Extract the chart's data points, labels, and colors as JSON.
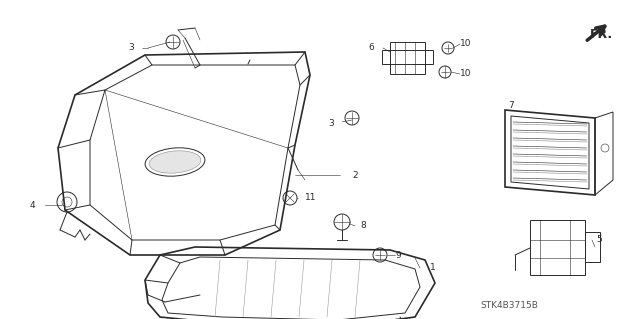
{
  "background_color": "#ffffff",
  "watermark": "STK4B3715B",
  "fr_arrow_text": "FR.",
  "fig_width": 6.4,
  "fig_height": 3.19,
  "dpi": 100,
  "line_color": "#2a2a2a",
  "lw_main": 1.2,
  "lw_thin": 0.7,
  "lw_hair": 0.4,
  "label_fontsize": 6.5,
  "watermark_fontsize": 6.5
}
